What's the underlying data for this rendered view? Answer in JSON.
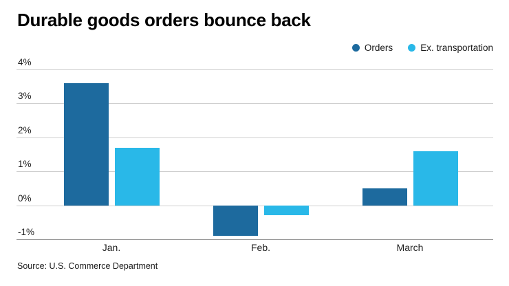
{
  "title": "Durable goods orders bounce back",
  "source": "Source: U.S. Commerce Department",
  "colors": {
    "orders": "#1d6a9e",
    "ex_transportation": "#29b8e8",
    "gridline": "#cfcfcf",
    "axis_line": "#969696",
    "text": "#1f1f1f"
  },
  "chart_data": {
    "type": "bar",
    "title": "Durable goods orders bounce back",
    "categories": [
      "Jan.",
      "Feb.",
      "March"
    ],
    "series": [
      {
        "name": "Orders",
        "color": "#1d6a9e",
        "values": [
          3.6,
          -0.9,
          0.5
        ]
      },
      {
        "name": "Ex. transportation",
        "color": "#29b8e8",
        "values": [
          1.7,
          -0.3,
          1.6
        ]
      }
    ],
    "xlabel": "",
    "ylabel": "",
    "ylim": [
      -1,
      4
    ],
    "yticks": [
      4,
      3,
      2,
      1,
      0,
      -1
    ],
    "ytick_labels": [
      "4%",
      "3%",
      "2%",
      "1%",
      "0%",
      "-1%"
    ],
    "grid": true,
    "legend_position": "top-right",
    "source": "Source: U.S. Commerce Department"
  }
}
